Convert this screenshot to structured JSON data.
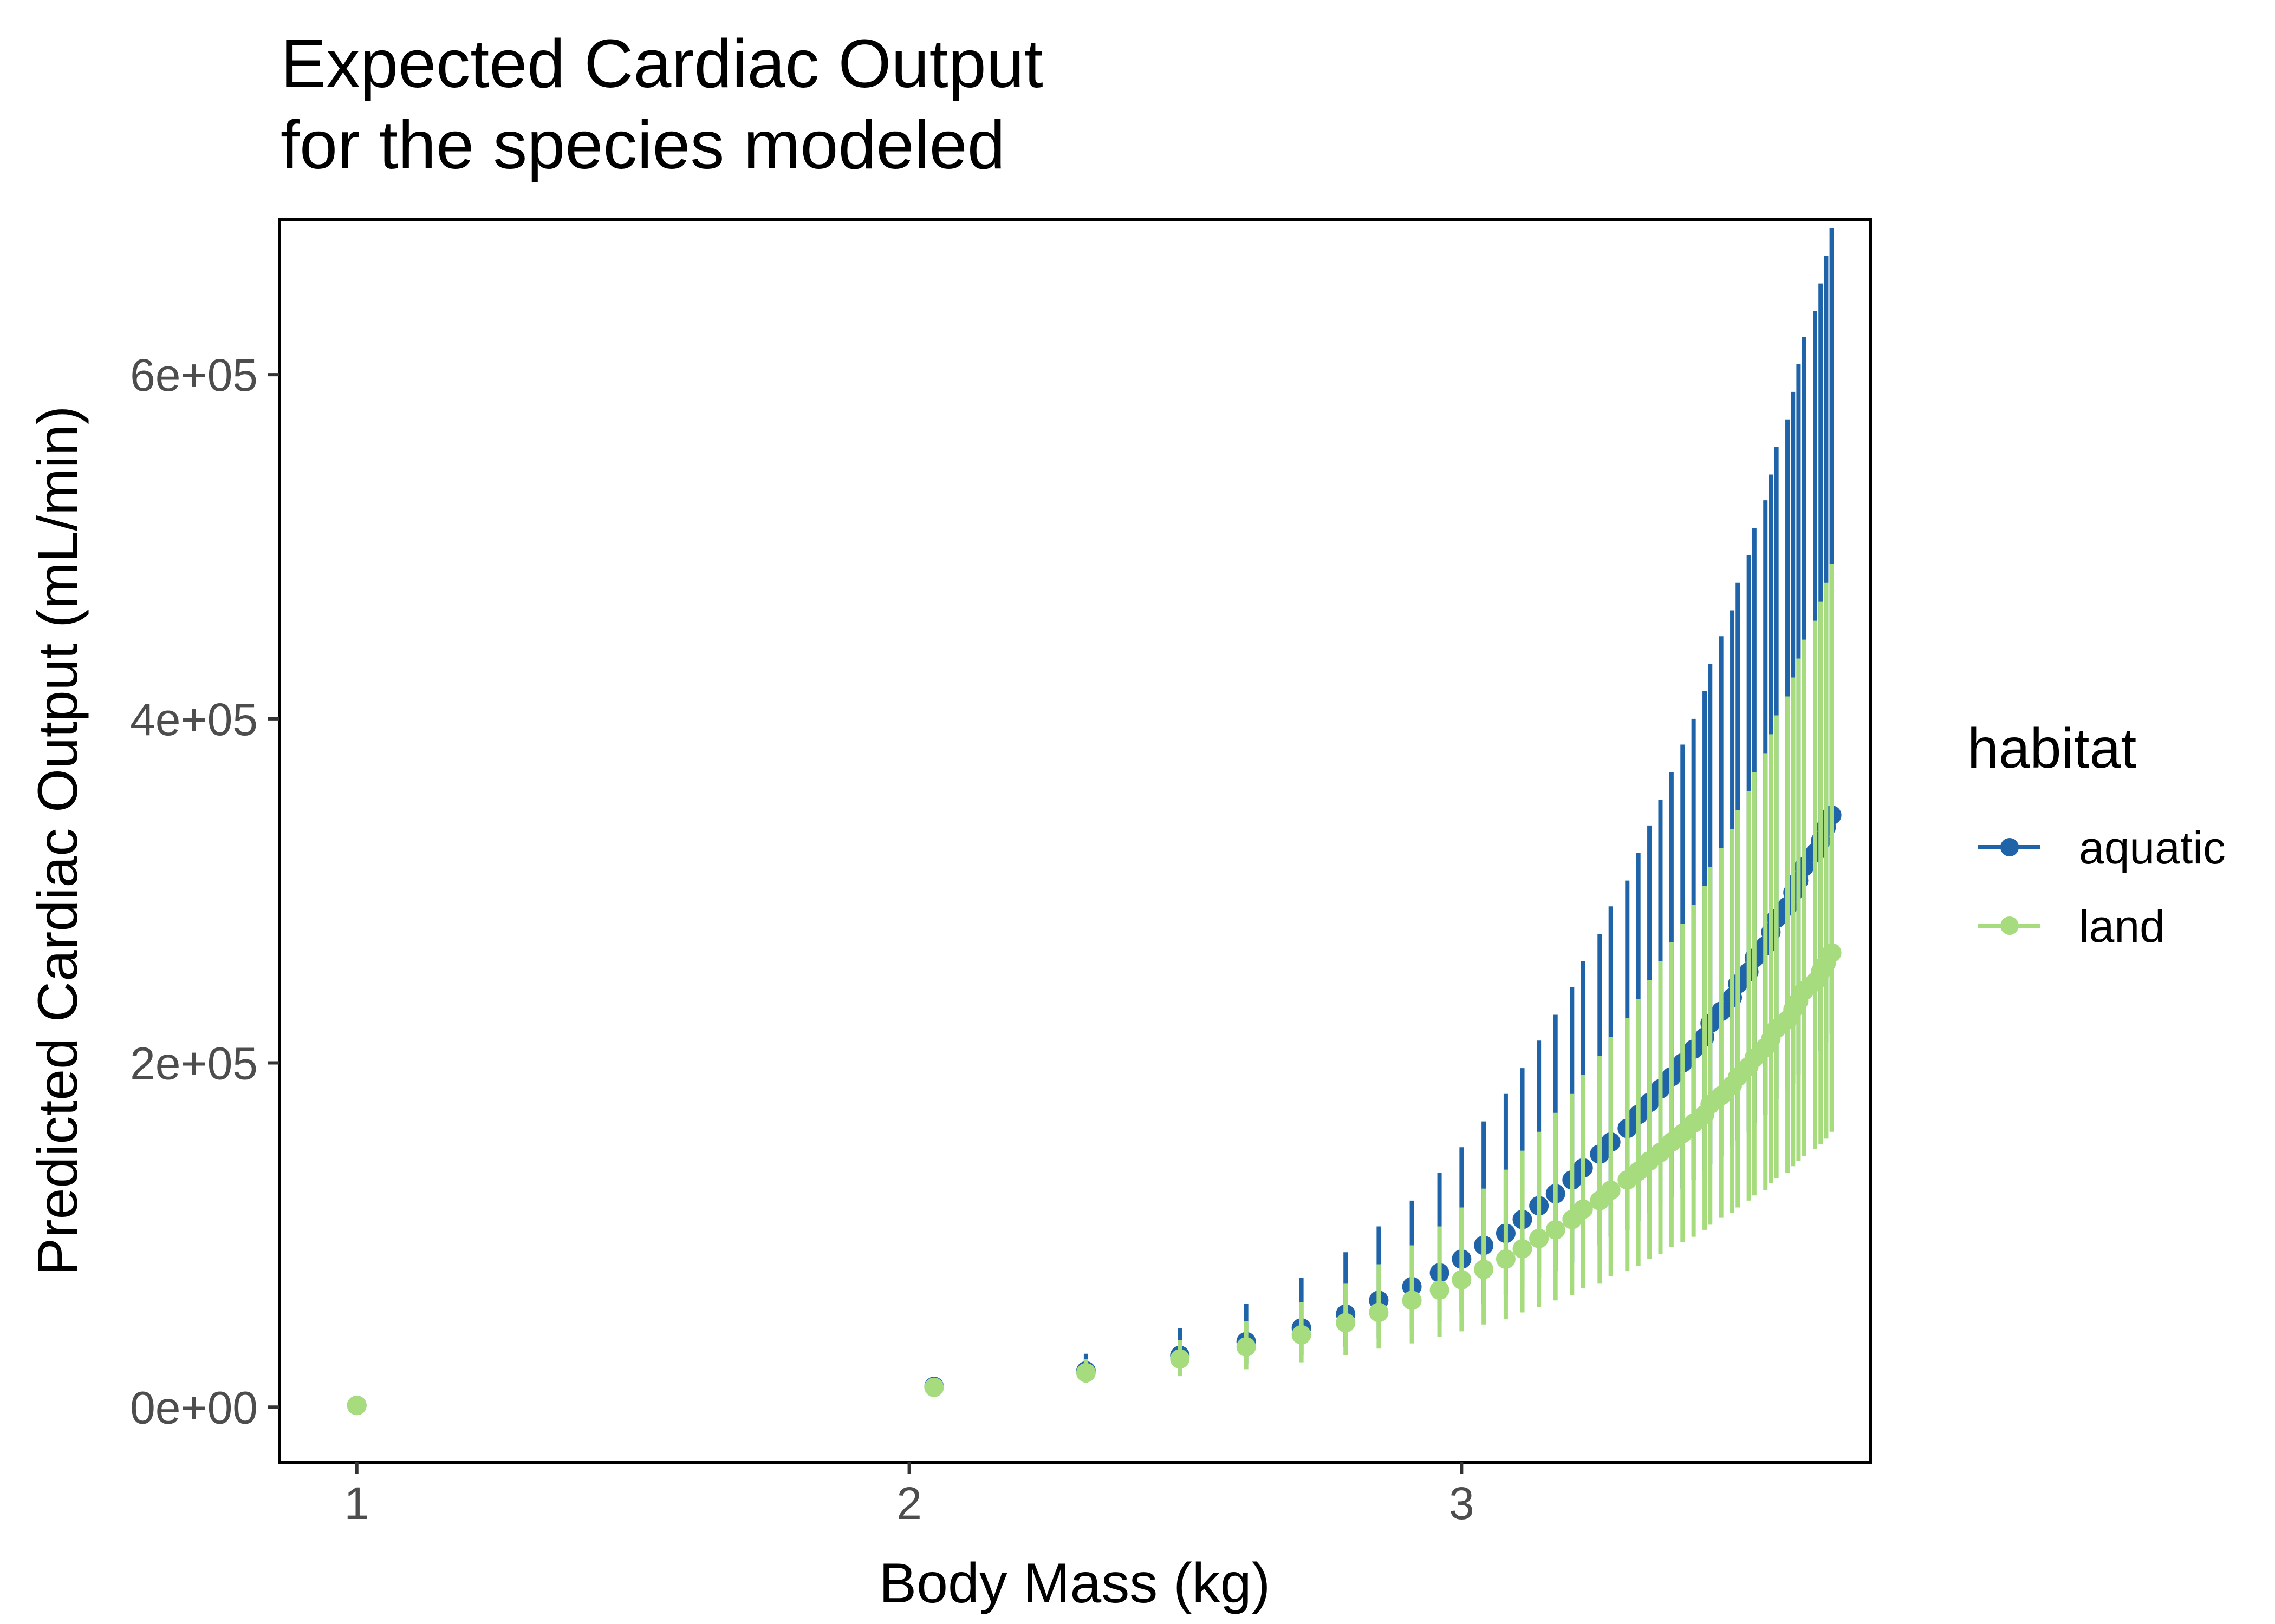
{
  "chart_data": {
    "type": "scatter",
    "title_lines": [
      "Expected Cardiac Output",
      "for the species modeled"
    ],
    "xlabel": "Body Mass (kg)",
    "ylabel": "Predicted Cardiac Output (mL/min)",
    "xlim": [
      0.86,
      3.74
    ],
    "ylim": [
      -32000,
      690000
    ],
    "x_ticks": [
      1,
      2,
      3
    ],
    "x_tick_labels": [
      "1",
      "2",
      "3"
    ],
    "y_ticks": [
      0,
      200000,
      400000,
      600000
    ],
    "y_tick_labels": [
      "0e+00",
      "2e+05",
      "4e+05",
      "6e+05"
    ],
    "grid": false,
    "legend": {
      "title": "habitat",
      "placement": "right"
    },
    "x": [
      1.0,
      2.045,
      2.32,
      2.49,
      2.61,
      2.71,
      2.79,
      2.85,
      2.91,
      2.96,
      3.0,
      3.04,
      3.08,
      3.11,
      3.14,
      3.17,
      3.2,
      3.22,
      3.25,
      3.27,
      3.3,
      3.32,
      3.34,
      3.36,
      3.38,
      3.4,
      3.42,
      3.44,
      3.45,
      3.47,
      3.49,
      3.5,
      3.52,
      3.53,
      3.55,
      3.56,
      3.57,
      3.59,
      3.6,
      3.61,
      3.62,
      3.64,
      3.65,
      3.66,
      3.67
    ],
    "series": [
      {
        "name": "aquatic",
        "color": "#1f63a8",
        "y": [
          1000,
          12000,
          21000,
          30000,
          38000,
          46000,
          54000,
          62000,
          70000,
          78000,
          86000,
          94000,
          101000,
          109000,
          117000,
          124000,
          132000,
          139000,
          147000,
          154000,
          162000,
          170000,
          177000,
          185000,
          192000,
          200000,
          208000,
          215000,
          223000,
          230000,
          238000,
          246000,
          253000,
          261000,
          268000,
          276000,
          284000,
          291000,
          299000,
          306000,
          314000,
          322000,
          329000,
          337000,
          344000
        ],
        "y_low": [
          500,
          8000,
          14000,
          20000,
          25000,
          30000,
          35000,
          40000,
          45000,
          50000,
          55000,
          60000,
          65000,
          70000,
          75000,
          79000,
          84000,
          89000,
          94000,
          99000,
          103000,
          108000,
          113000,
          118000,
          122000,
          127000,
          132000,
          137000,
          141000,
          146000,
          151000,
          155000,
          160000,
          165000,
          170000,
          174000,
          179000,
          184000,
          188000,
          193000,
          198000,
          202000,
          207000,
          212000,
          217000
        ],
        "y_high": [
          2000,
          17000,
          31000,
          46000,
          60000,
          75000,
          90000,
          105000,
          120000,
          136000,
          151000,
          166000,
          182000,
          197000,
          213000,
          228000,
          244000,
          259000,
          275000,
          291000,
          306000,
          322000,
          338000,
          353000,
          369000,
          385000,
          400000,
          416000,
          432000,
          448000,
          463000,
          479000,
          495000,
          511000,
          527000,
          542000,
          558000,
          574000,
          590000,
          606000,
          622000,
          637000,
          653000,
          669000,
          685000
        ]
      },
      {
        "name": "land",
        "color": "#a6dc7e",
        "y": [
          1000,
          11500,
          20000,
          28000,
          35000,
          42000,
          49000,
          55000,
          62000,
          68000,
          74000,
          80000,
          86000,
          92000,
          98000,
          103000,
          109000,
          115000,
          120000,
          126000,
          132000,
          137000,
          143000,
          148000,
          154000,
          159000,
          165000,
          170000,
          176000,
          181000,
          187000,
          192000,
          198000,
          203000,
          209000,
          214000,
          220000,
          225000,
          231000,
          236000,
          242000,
          247000,
          253000,
          258000,
          264000
        ],
        "y_low": [
          500,
          8500,
          14000,
          18000,
          22000,
          26000,
          30000,
          34000,
          37000,
          41000,
          44000,
          48000,
          51000,
          55000,
          58000,
          62000,
          65000,
          69000,
          72000,
          76000,
          79000,
          82000,
          86000,
          89000,
          93000,
          96000,
          99000,
          103000,
          106000,
          110000,
          113000,
          116000,
          120000,
          123000,
          126000,
          130000,
          133000,
          136000,
          140000,
          143000,
          146000,
          150000,
          153000,
          156000,
          160000
        ],
        "y_high": [
          1800,
          15000,
          28000,
          39000,
          50000,
          61000,
          72000,
          83000,
          94000,
          105000,
          116000,
          127000,
          138000,
          149000,
          160000,
          171000,
          182000,
          193000,
          204000,
          215000,
          226000,
          237000,
          248000,
          259000,
          270000,
          281000,
          292000,
          303000,
          314000,
          325000,
          336000,
          347000,
          358000,
          369000,
          380000,
          391000,
          402000,
          413000,
          424000,
          435000,
          446000,
          457000,
          468000,
          479000,
          490000
        ]
      }
    ]
  }
}
